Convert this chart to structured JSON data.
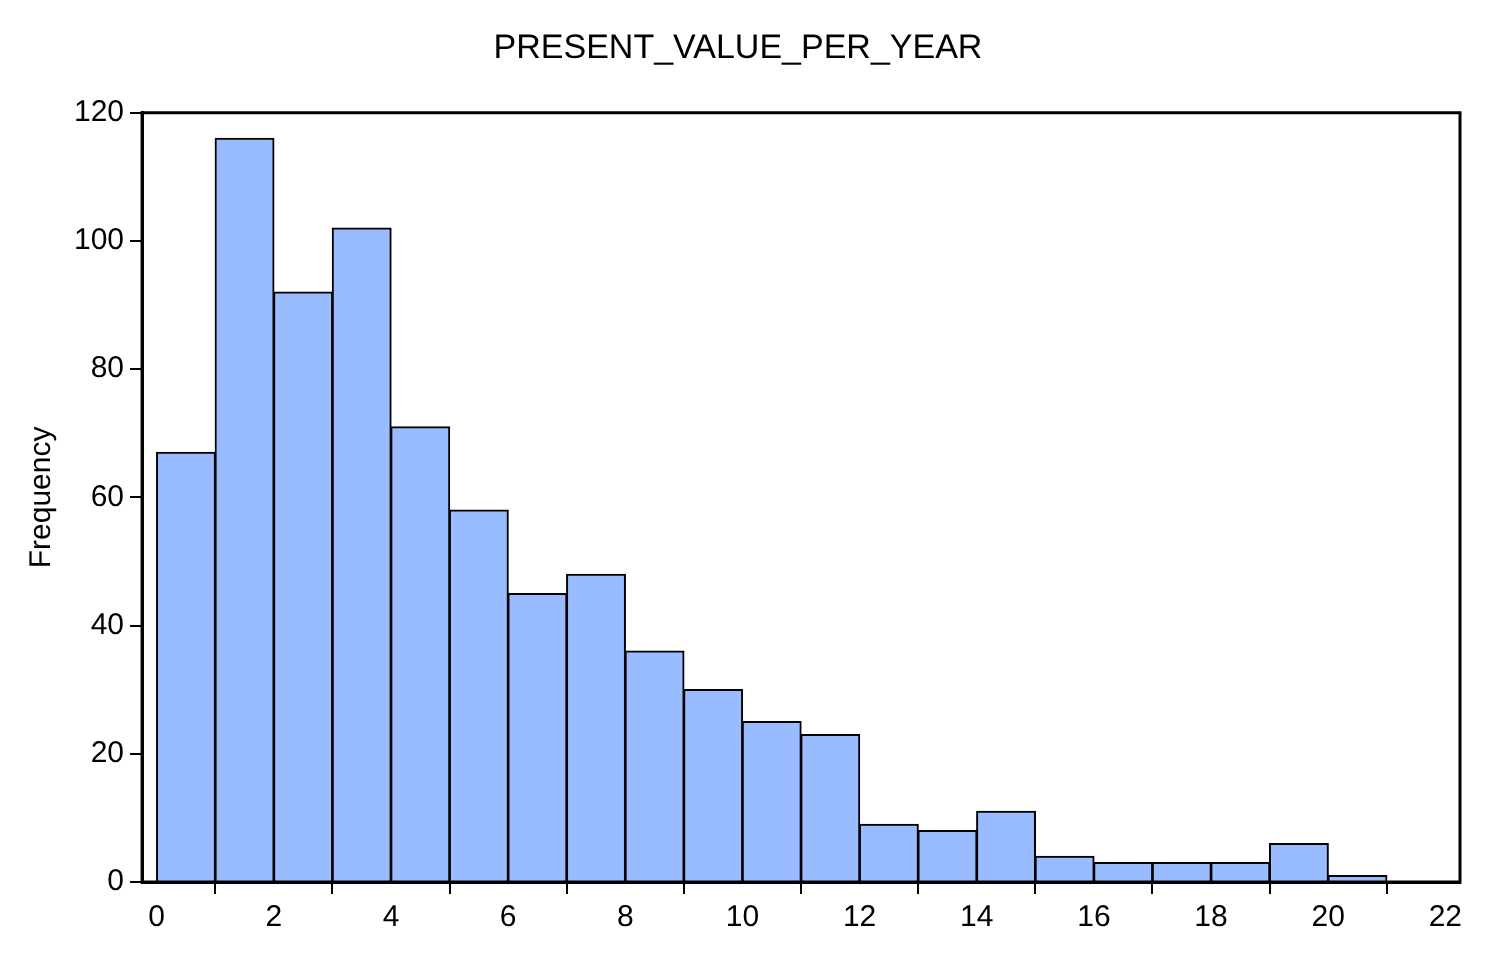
{
  "chart_data": {
    "type": "histogram",
    "title": "PRESENT_VALUE_PER_YEAR",
    "ylabel": "Frequency",
    "bins": [
      0,
      1,
      2,
      3,
      4,
      5,
      6,
      7,
      8,
      9,
      10,
      11,
      12,
      13,
      14,
      15,
      16,
      17,
      18,
      19,
      20,
      21
    ],
    "values": [
      67,
      116,
      92,
      102,
      71,
      58,
      45,
      48,
      36,
      30,
      25,
      23,
      9,
      8,
      11,
      4,
      3,
      3,
      3,
      6,
      1
    ],
    "color": "#99bbff",
    "xlim": [
      -0.25,
      22.25
    ],
    "xticks": [
      0,
      2,
      4,
      6,
      8,
      10,
      12,
      14,
      16,
      18,
      20,
      22
    ],
    "ylim": [
      0,
      120
    ],
    "yticks": [
      0,
      20,
      40,
      60,
      80,
      100,
      120
    ],
    "grid": false,
    "legend": false
  }
}
